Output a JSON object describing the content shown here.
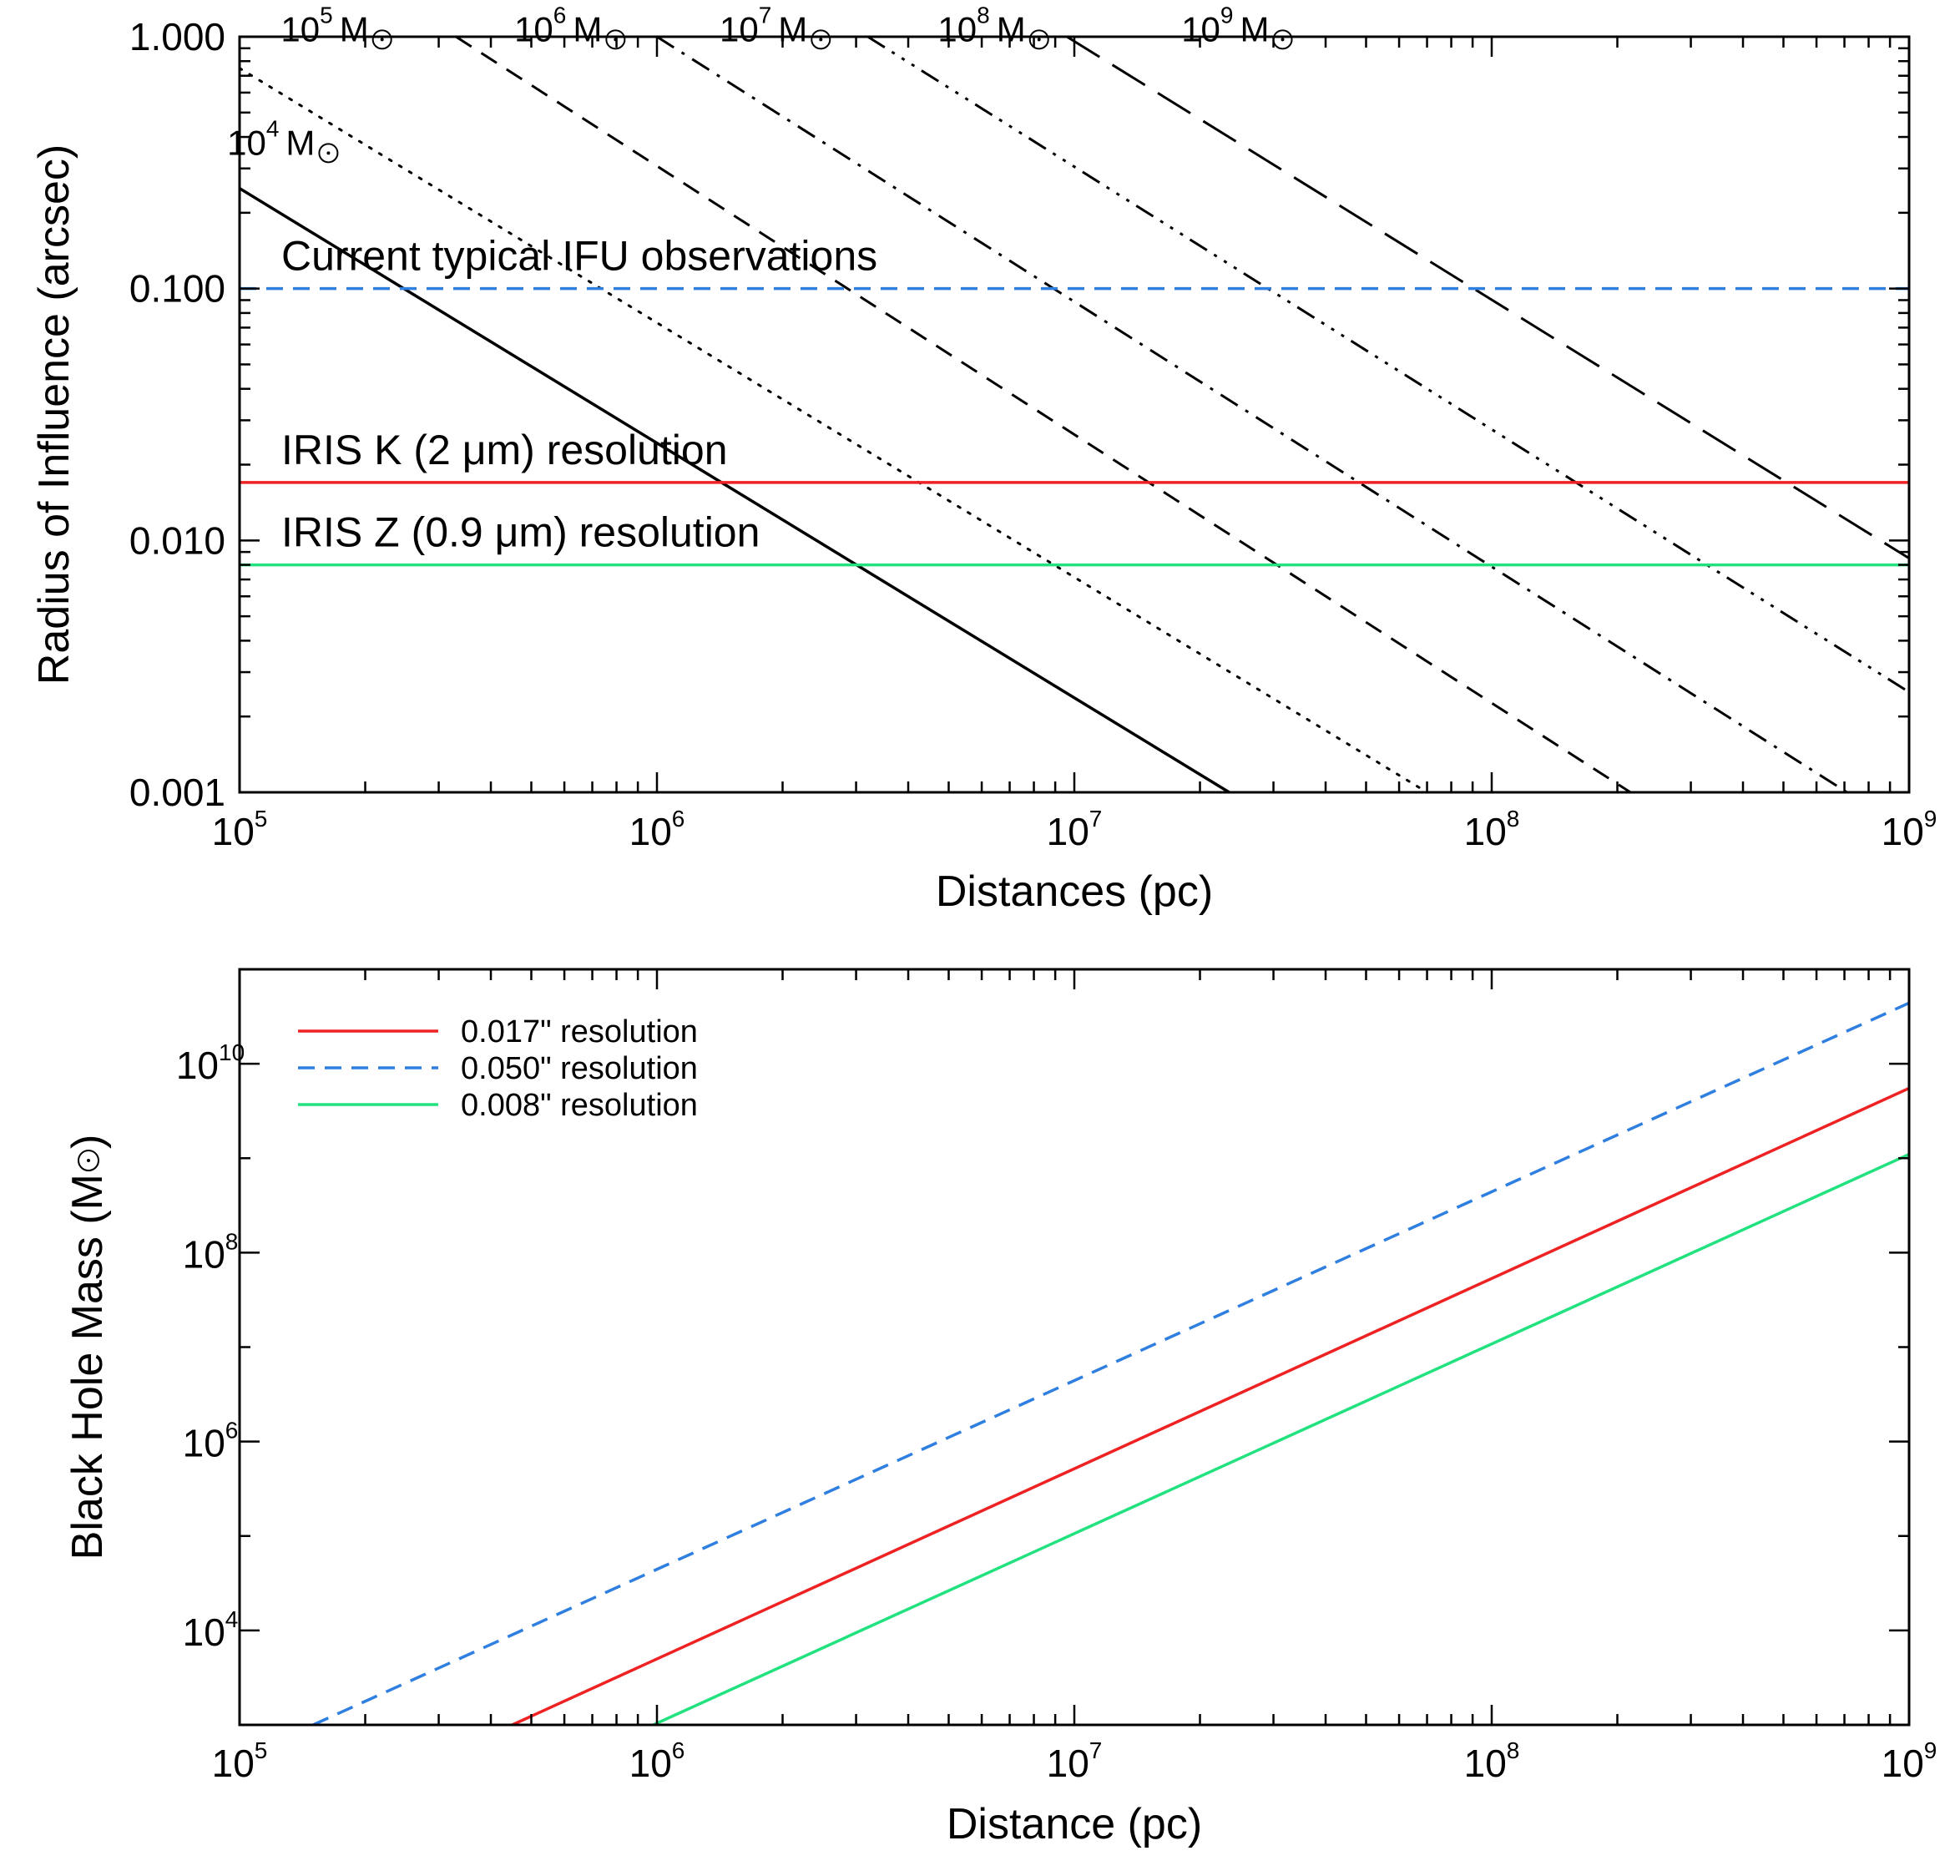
{
  "chart_data": [
    {
      "type": "line",
      "xscale": "log",
      "yscale": "log",
      "xlim": [
        100000,
        1000000000
      ],
      "ylim": [
        0.001,
        1.0
      ],
      "xlabel": "Distances (pc)",
      "ylabel": "Radius of Influence (arcsec)",
      "x_tick_labels": [
        {
          "base": "10",
          "exp": "5"
        },
        {
          "base": "10",
          "exp": "6"
        },
        {
          "base": "10",
          "exp": "7"
        },
        {
          "base": "10",
          "exp": "8"
        },
        {
          "base": "10",
          "exp": "9"
        }
      ],
      "y_tick_labels": [
        "0.001",
        "0.010",
        "0.100",
        "1.000"
      ],
      "mass_series": [
        {
          "name": "10^4 Msun",
          "label_base": "10",
          "label_exp": "4",
          "label_unit": "M",
          "dash": "solid",
          "points": [
            [
              100000,
              0.25
            ],
            [
              23500000,
              0.001
            ]
          ]
        },
        {
          "name": "10^5 Msun",
          "label_base": "10",
          "label_exp": "5",
          "label_unit": "M",
          "dash": "dotted",
          "points": [
            [
              100000,
              0.75
            ],
            [
              70000000,
              0.001
            ]
          ]
        },
        {
          "name": "10^6 Msun",
          "label_base": "10",
          "label_exp": "6",
          "label_unit": "M",
          "dash": "dashed",
          "points": [
            [
              330000,
              1.0
            ],
            [
              215000000,
              0.001
            ]
          ]
        },
        {
          "name": "10^7 Msun",
          "label_base": "10",
          "label_exp": "7",
          "label_unit": "M",
          "dash": "dashdot",
          "points": [
            [
              1000000,
              1.0
            ],
            [
              710000000,
              0.001
            ]
          ]
        },
        {
          "name": "10^8 Msun",
          "label_base": "10",
          "label_exp": "8",
          "label_unit": "M",
          "dash": "dashdotdotdot",
          "points": [
            [
              3200000,
              1.0
            ],
            [
              1000000000,
              0.0025
            ]
          ]
        },
        {
          "name": "10^9 Msun",
          "label_base": "10",
          "label_exp": "9",
          "label_unit": "M",
          "dash": "longdash",
          "points": [
            [
              9600000,
              1.0
            ],
            [
              1000000000,
              0.0085
            ]
          ]
        }
      ],
      "resolution_lines": [
        {
          "name": "Current typical IFU observations",
          "y": 0.1,
          "color": "#2f7fe0",
          "dash": "dashed"
        },
        {
          "name": "IRIS K (2 μm) resolution",
          "y": 0.017,
          "color": "#ee2222",
          "dash": "solid"
        },
        {
          "name": "IRIS Z (0.9 μm) resolution",
          "y": 0.008,
          "color": "#22e27f",
          "dash": "solid"
        }
      ]
    },
    {
      "type": "line",
      "xscale": "log",
      "yscale": "log",
      "xlim": [
        100000,
        1000000000
      ],
      "ylim": [
        1000,
        100000000000
      ],
      "xlabel": "Distance (pc)",
      "ylabel_prefix": "Black Hole Mass (M",
      "ylabel_suffix": ")",
      "legend_position": "top-left",
      "x_tick_labels": [
        {
          "base": "10",
          "exp": "5"
        },
        {
          "base": "10",
          "exp": "6"
        },
        {
          "base": "10",
          "exp": "7"
        },
        {
          "base": "10",
          "exp": "8"
        },
        {
          "base": "10",
          "exp": "9"
        }
      ],
      "y_tick_labels": [
        {
          "base": "10",
          "exp": "4",
          "value": 10000
        },
        {
          "base": "10",
          "exp": "6",
          "value": 1000000
        },
        {
          "base": "10",
          "exp": "8",
          "value": 100000000
        },
        {
          "base": "10",
          "exp": "10",
          "value": 10000000000
        }
      ],
      "series": [
        {
          "name": "0.017\" resolution",
          "color": "#ee2222",
          "dash": "solid",
          "points": [
            [
              450000,
              1000
            ],
            [
              1000000000,
              5500000000
            ]
          ]
        },
        {
          "name": "0.050\" resolution",
          "color": "#2f7fe0",
          "dash": "dashed",
          "points": [
            [
              150000,
              1000
            ],
            [
              1000000000,
              44000000000
            ]
          ]
        },
        {
          "name": "0.008\" resolution",
          "color": "#22e27f",
          "dash": "solid",
          "points": [
            [
              980000,
              1000
            ],
            [
              1000000000,
              1100000000
            ]
          ]
        }
      ]
    }
  ]
}
